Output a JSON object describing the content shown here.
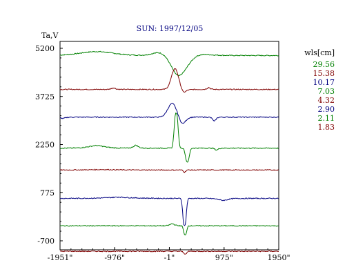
{
  "chart_data": {
    "type": "line",
    "title": "SUN: 1997/12/05",
    "ylabel": "Ta,V",
    "xlabel": "",
    "xlim": [
      -1951,
      1950
    ],
    "ylim": [
      -700,
      5200
    ],
    "x_ticks": [
      -1951,
      -976,
      -1,
      975,
      1950
    ],
    "x_tick_labels": [
      "-1951\"",
      "-976\"",
      "-1\"",
      "975\"",
      "1950\""
    ],
    "y_ticks": [
      -700,
      775,
      2250,
      3725,
      5200
    ],
    "y_tick_labels": [
      "-700",
      "775",
      "2250",
      "3725",
      "5200"
    ],
    "legend_title": "wls[cm]",
    "legend_position": "right",
    "series": [
      {
        "name": "29.56",
        "color": "#008000",
        "baseline": 4980,
        "bumps": [
          [
            -1300,
            420,
            120,
            0.9
          ],
          [
            -100,
            220,
            150,
            1.0
          ],
          [
            150,
            200,
            -600,
            0.9
          ],
          [
            280,
            220,
            -100,
            0.9
          ],
          [
            500,
            250,
            60,
            0.8
          ]
        ]
      },
      {
        "name": "15.38",
        "color": "#800000",
        "baseline": 3940,
        "bumps": [
          [
            100,
            90,
            640,
            1.0
          ],
          [
            250,
            60,
            -120,
            0.7
          ],
          [
            -1000,
            50,
            50,
            0.7
          ],
          [
            700,
            40,
            60,
            0.7
          ]
        ]
      },
      {
        "name": "10.17",
        "color": "#000080",
        "baseline": 3090,
        "bumps": [
          [
            50,
            110,
            420,
            1.0
          ],
          [
            230,
            80,
            -220,
            0.9
          ],
          [
            800,
            40,
            -130,
            0.8
          ],
          [
            -1900,
            60,
            -40,
            0.8
          ]
        ]
      },
      {
        "name": "7.03",
        "color": "#008000",
        "baseline": 2140,
        "bumps": [
          [
            120,
            45,
            1080,
            1.3
          ],
          [
            320,
            45,
            -420,
            1.3
          ],
          [
            -1300,
            200,
            80,
            0.8
          ],
          [
            -600,
            60,
            90,
            0.8
          ],
          [
            840,
            40,
            -60,
            0.8
          ]
        ]
      },
      {
        "name": "4.32",
        "color": "#800000",
        "baseline": 1470,
        "bumps": [
          [
            270,
            25,
            -70,
            1.1
          ],
          [
            -1200,
            300,
            15,
            0.7
          ]
        ]
      },
      {
        "name": "2.90",
        "color": "#000080",
        "baseline": 600,
        "bumps": [
          [
            270,
            40,
            -840,
            1.3
          ],
          [
            -900,
            300,
            40,
            0.6
          ],
          [
            960,
            120,
            -60,
            0.9
          ]
        ]
      },
      {
        "name": "2.11",
        "color": "#008000",
        "baseline": -240,
        "bumps": [
          [
            280,
            35,
            -290,
            1.3
          ],
          [
            50,
            60,
            60,
            0.9
          ]
        ]
      },
      {
        "name": "1.83",
        "color": "#800000",
        "baseline": -1020,
        "bumps": [
          [
            280,
            40,
            -80,
            1.1
          ]
        ]
      }
    ]
  }
}
